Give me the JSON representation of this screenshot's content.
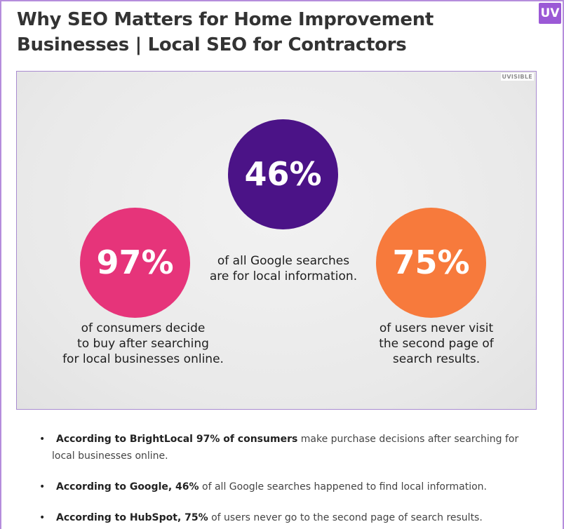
{
  "header": {
    "title_line1": "Why SEO Matters for Home Improvement",
    "title_line2": "Businesses | Local SEO for Contractors",
    "brand_badge": "UV"
  },
  "infographic": {
    "watermark": "UVISIBLE",
    "stats": [
      {
        "value": "46%",
        "color": "#4b1387",
        "caption": [
          "of all Google searches",
          "are for local information."
        ]
      },
      {
        "value": "97%",
        "color": "#e6347a",
        "caption": [
          "of consumers decide",
          "to buy after searching",
          "for local businesses online."
        ]
      },
      {
        "value": "75%",
        "color": "#f77a3c",
        "caption": [
          "of users never visit",
          "the second page of",
          "search results."
        ]
      }
    ]
  },
  "bullets": [
    {
      "bold": "According to BrightLocal 97% of consumers",
      "text_line1": " make purchase decisions after searching for",
      "text_line2": "local businesses online."
    },
    {
      "bold": "According to Google, 46%",
      "text_line1": " of all Google searches happened to find local information."
    },
    {
      "bold": "According to HubSpot, 75%",
      "text_line1": " of users never go to the second page of search results."
    }
  ]
}
